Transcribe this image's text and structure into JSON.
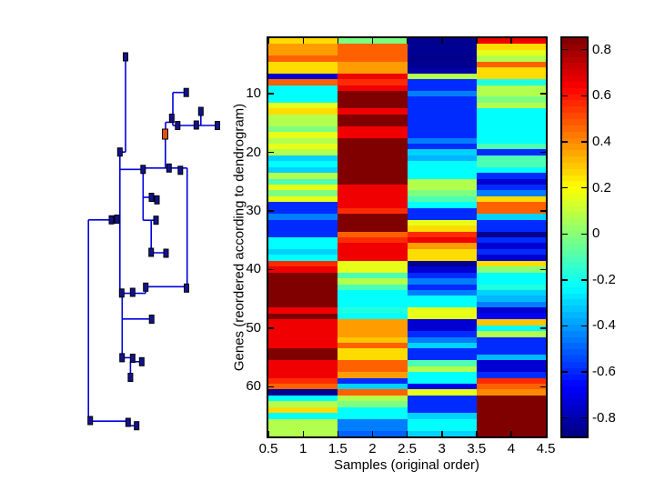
{
  "figure": {
    "background": "#ffffff"
  },
  "chart_data": {
    "type": "heatmap",
    "title": "",
    "xlabel": "Samples (original order)",
    "ylabel": "Genes (reordered according to dendrogram)",
    "colormap": "jet",
    "grid": false,
    "n_rows": 68,
    "n_cols": 4,
    "x_range": [
      0.5,
      4.5
    ],
    "caxis": [
      -0.88,
      0.85
    ],
    "x_ticks": {
      "values": [
        0.5,
        1,
        1.5,
        2,
        2.5,
        3,
        3.5,
        4,
        4.5
      ],
      "labels": [
        "0.5",
        "1",
        "1.5",
        "2",
        "2.5",
        "3",
        "3.5",
        "4",
        "4.5"
      ]
    },
    "y_ticks": {
      "values": [
        10,
        20,
        30,
        40,
        50,
        60
      ],
      "labels": [
        "10",
        "20",
        "30",
        "40",
        "50",
        "60"
      ]
    },
    "colorbar": {
      "tick_values": [
        0.8,
        0.6,
        0.4,
        0.2,
        0,
        -0.2,
        -0.4,
        -0.6,
        -0.8
      ],
      "tick_labels": [
        "0.8",
        "0.6",
        "0.4",
        "0.2",
        "0",
        "-0.2",
        "-0.4",
        "-0.6",
        "-0.8"
      ],
      "position": "right"
    },
    "values": [
      [
        0.26,
        -0.02,
        -0.85,
        0.66
      ],
      [
        0.37,
        0.47,
        -0.85,
        0.26
      ],
      [
        0.37,
        0.47,
        -0.85,
        0.16
      ],
      [
        0.47,
        0.47,
        -0.86,
        0.07
      ],
      [
        0.26,
        0.37,
        -0.85,
        0.47
      ],
      [
        0.26,
        0.37,
        -0.82,
        0.26
      ],
      [
        -0.74,
        0.66,
        0.07,
        0.26
      ],
      [
        0.47,
        0.56,
        -0.59,
        -0.18
      ],
      [
        -0.23,
        0.66,
        -0.59,
        0.07
      ],
      [
        -0.23,
        0.85,
        -0.45,
        0.07
      ],
      [
        -0.23,
        0.85,
        -0.59,
        -0.02
      ],
      [
        0.16,
        0.85,
        -0.59,
        0.07
      ],
      [
        0.26,
        0.66,
        -0.59,
        -0.23
      ],
      [
        0.07,
        0.85,
        -0.59,
        -0.23
      ],
      [
        0.07,
        0.85,
        -0.59,
        -0.23
      ],
      [
        -0.02,
        0.66,
        -0.59,
        -0.23
      ],
      [
        0.16,
        0.66,
        -0.59,
        -0.23
      ],
      [
        0.07,
        0.85,
        -0.45,
        -0.23
      ],
      [
        0.16,
        0.85,
        -0.59,
        -0.1
      ],
      [
        0.07,
        0.85,
        -0.31,
        -0.59
      ],
      [
        -0.31,
        0.85,
        -0.36,
        -0.1
      ],
      [
        -0.23,
        0.85,
        -0.23,
        -0.1
      ],
      [
        -0.31,
        0.85,
        -0.23,
        -0.23
      ],
      [
        0.07,
        0.85,
        -0.23,
        -0.59
      ],
      [
        -0.1,
        0.85,
        0.07,
        -0.74
      ],
      [
        0.16,
        0.66,
        0.07,
        -0.59
      ],
      [
        -0.02,
        0.66,
        -0.02,
        -0.45
      ],
      [
        0.16,
        0.66,
        -0.1,
        0.26
      ],
      [
        -0.59,
        0.66,
        -0.23,
        0.47
      ],
      [
        -0.59,
        0.56,
        -0.59,
        0.47
      ],
      [
        -0.45,
        0.85,
        -0.59,
        -0.31
      ],
      [
        -0.59,
        0.85,
        0.16,
        -0.59
      ],
      [
        -0.59,
        0.85,
        0.26,
        -0.59
      ],
      [
        -0.59,
        0.47,
        0.56,
        -0.85
      ],
      [
        -0.23,
        0.56,
        0.66,
        -0.59
      ],
      [
        -0.23,
        0.66,
        0.37,
        -0.74
      ],
      [
        -0.31,
        0.66,
        0.26,
        -0.59
      ],
      [
        -0.23,
        0.66,
        0.26,
        -0.74
      ],
      [
        0.56,
        0.16,
        -0.85,
        0.26
      ],
      [
        0.66,
        0.16,
        -0.74,
        0.0
      ],
      [
        0.85,
        -0.1,
        -0.59,
        -0.23
      ],
      [
        0.85,
        0.07,
        -0.45,
        -0.23
      ],
      [
        0.85,
        -0.1,
        -0.59,
        -0.18
      ],
      [
        0.85,
        -0.23,
        -0.45,
        -0.31
      ],
      [
        0.85,
        -0.23,
        -0.23,
        -0.35
      ],
      [
        0.85,
        -0.23,
        -0.23,
        -0.45
      ],
      [
        0.66,
        -0.18,
        0.16,
        -0.74
      ],
      [
        0.85,
        -0.23,
        0.16,
        -0.66
      ],
      [
        0.66,
        0.37,
        -0.74,
        0.3
      ],
      [
        0.66,
        0.37,
        -0.74,
        -0.23
      ],
      [
        0.66,
        0.37,
        -0.59,
        0.07
      ],
      [
        0.66,
        0.3,
        -0.45,
        -0.59
      ],
      [
        0.66,
        0.47,
        -0.31,
        -0.59
      ],
      [
        0.85,
        0.26,
        -0.59,
        -0.59
      ],
      [
        0.85,
        0.26,
        -0.59,
        -0.35
      ],
      [
        0.66,
        0.47,
        -0.1,
        -0.74
      ],
      [
        0.66,
        0.47,
        0.07,
        -0.74
      ],
      [
        0.66,
        0.37,
        -0.23,
        -0.59
      ],
      [
        0.56,
        -0.59,
        -0.23,
        0.56
      ],
      [
        0.47,
        -0.31,
        -0.7,
        0.47
      ],
      [
        -0.85,
        0.47,
        0.16,
        0.4
      ],
      [
        -0.23,
        0.07,
        -0.59,
        0.85
      ],
      [
        0.07,
        -0.02,
        -0.59,
        0.85
      ],
      [
        0.26,
        -0.23,
        -0.59,
        0.85
      ],
      [
        -0.23,
        -0.23,
        -0.31,
        0.85
      ],
      [
        0.07,
        -0.45,
        -0.23,
        0.85
      ],
      [
        0.07,
        -0.45,
        -0.23,
        0.85
      ],
      [
        0.07,
        -0.5,
        -0.31,
        0.85
      ]
    ],
    "dendrogram": {
      "line_color": "#0000DC",
      "marker_color": "#12128C",
      "marker_edge_color": "#000000",
      "selected_marker_color": "#E2500F",
      "segments": [
        [
          138,
          66,
          138,
          167.2
        ],
        [
          131.8,
          167.2,
          138,
          167.2
        ],
        [
          131.8,
          167.2,
          131.8,
          322.6
        ],
        [
          97.2,
          241.8,
          131.8,
          241.8
        ],
        [
          97.2,
          241.8,
          97.2,
          463.2
        ],
        [
          97.2,
          463.2,
          140.8,
          463.2
        ],
        [
          140.8,
          463.2,
          140.8,
          468.2
        ],
        [
          140.8,
          468.2,
          150.2,
          468.2
        ],
        [
          131.8,
          186.3,
          157.3,
          186.3
        ],
        [
          157.3,
          184.8,
          157.3,
          242.2
        ],
        [
          157.3,
          217,
          166.5,
          217
        ],
        [
          166.5,
          217,
          166.5,
          219.8
        ],
        [
          166.5,
          219.8,
          172.5,
          219.8
        ],
        [
          157.3,
          242.2,
          171.5,
          242.2
        ],
        [
          166.2,
          242.2,
          166.2,
          278
        ],
        [
          166.2,
          278,
          182.5,
          278
        ],
        [
          157.3,
          184.8,
          205.7,
          184.8
        ],
        [
          181.8,
          153,
          181.8,
          184.8
        ],
        [
          205.7,
          184.8,
          205.7,
          315.3
        ],
        [
          160,
          315.3,
          205.7,
          315.3
        ],
        [
          160,
          315.3,
          160,
          322.6
        ],
        [
          133.8,
          322.6,
          160,
          322.6
        ],
        [
          134.3,
          322.6,
          134.3,
          350.8
        ],
        [
          134.3,
          350.8,
          166.7,
          350.8
        ],
        [
          134.3,
          350.8,
          134.3,
          393.4
        ],
        [
          134.3,
          393.4,
          145.8,
          393.4
        ],
        [
          145.8,
          393.4,
          145.8,
          397.8
        ],
        [
          145.8,
          397.8,
          155.8,
          397.8
        ],
        [
          143.4,
          397.8,
          143.4,
          415
        ],
        [
          190,
          101.7,
          204,
          101.7
        ],
        [
          190,
          101.7,
          190,
          138
        ],
        [
          190,
          138,
          239,
          138
        ],
        [
          220.8,
          127,
          220.8,
          138
        ],
        [
          182,
          134.5,
          190,
          134.5
        ],
        [
          182,
          134.5,
          182,
          147.5
        ]
      ],
      "markers": [
        [
          138,
          62.5
        ],
        [
          131.8,
          167.2
        ],
        [
          204.7,
          101.7
        ],
        [
          188.8,
          130
        ],
        [
          220.8,
          122.5
        ],
        [
          195.3,
          138
        ],
        [
          215.8,
          137.5
        ],
        [
          239,
          138
        ],
        [
          157.3,
          186.3
        ],
        [
          185.8,
          184.8
        ],
        [
          198.3,
          187.3
        ],
        [
          166.5,
          217
        ],
        [
          172.5,
          219.8
        ],
        [
          171.5,
          242.2
        ],
        [
          122.5,
          241.8
        ],
        [
          128.5,
          241
        ],
        [
          166.2,
          277.5
        ],
        [
          182.5,
          278.5
        ],
        [
          133.8,
          322.3
        ],
        [
          145.8,
          321.5
        ],
        [
          160.2,
          315.8
        ],
        [
          205,
          316.8
        ],
        [
          166.7,
          351
        ],
        [
          134.2,
          393.4
        ],
        [
          145.8,
          394
        ],
        [
          155.8,
          397.8
        ],
        [
          143.4,
          415
        ],
        [
          99.2,
          462.5
        ],
        [
          140.8,
          464.5
        ],
        [
          150.2,
          468.2
        ]
      ],
      "selected_marker": [
        181.5,
        147.5
      ]
    }
  }
}
